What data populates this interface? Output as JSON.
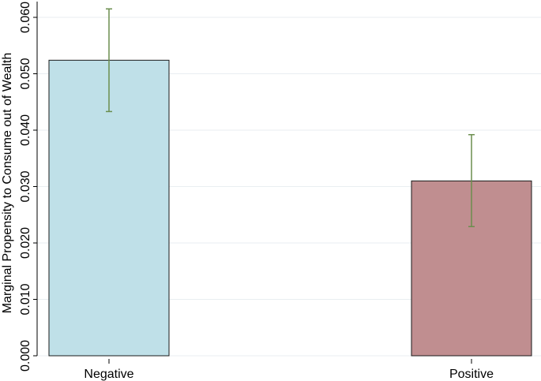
{
  "chart_data": {
    "type": "bar",
    "title": "",
    "xlabel": "",
    "ylabel": "Marginal Propensity to Consume out of Wealth",
    "categories": [
      "Negative",
      "Positive"
    ],
    "values": [
      0.0524,
      0.031
    ],
    "error_low": [
      0.0433,
      0.0229
    ],
    "error_high": [
      0.0615,
      0.0392
    ],
    "ylim": [
      0,
      0.06
    ],
    "yticks": [
      0,
      0.01,
      0.02,
      0.03,
      0.04,
      0.05,
      0.06
    ],
    "ytick_labels": [
      "0.000",
      "0.010",
      "0.020",
      "0.030",
      "0.040",
      "0.050",
      "0.060"
    ],
    "grid": true,
    "bar_colors": [
      "#bfe0e8",
      "#c08e90"
    ],
    "error_bar_color": "#6b8e4e"
  }
}
